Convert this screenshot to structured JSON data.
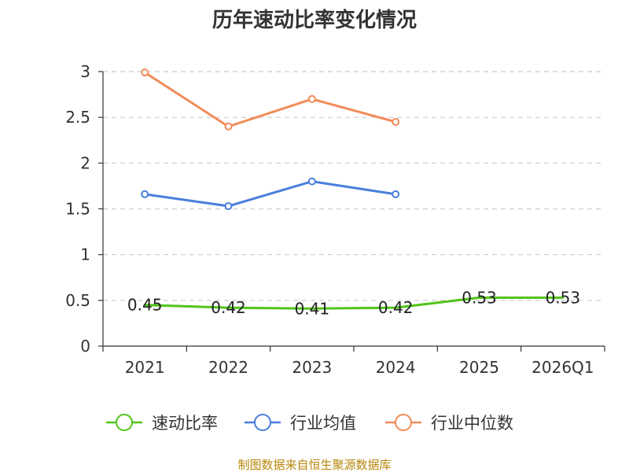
{
  "chart_data": {
    "type": "line",
    "title": "历年速动比率变化情况",
    "categories": [
      "2021",
      "2022",
      "2023",
      "2024",
      "2025",
      "2026Q1"
    ],
    "ylim": [
      0,
      3
    ],
    "yticks": [
      0,
      0.5,
      1,
      1.5,
      2,
      2.5,
      3
    ],
    "ytick_labels": [
      "0",
      "0.5",
      "1",
      "1.5",
      "2",
      "2.5",
      "3"
    ],
    "grid": true,
    "legend_position": "bottom",
    "series": [
      {
        "name": "速动比率",
        "color": "#52c41a",
        "values": [
          0.45,
          0.42,
          0.41,
          0.42,
          0.53,
          0.53
        ],
        "labels": [
          "0.45",
          "0.42",
          "0.41",
          "0.42",
          "0.53",
          "0.53"
        ],
        "show_markers": false,
        "show_labels": true
      },
      {
        "name": "行业均值",
        "color": "#4a7fdc",
        "values": [
          1.66,
          1.53,
          1.8,
          1.66,
          null,
          null
        ],
        "show_markers": true,
        "show_labels": false
      },
      {
        "name": "行业中位数",
        "color": "#f28c5a",
        "values": [
          2.99,
          2.4,
          2.7,
          2.45,
          null,
          null
        ],
        "show_markers": true,
        "show_labels": false
      }
    ]
  },
  "footer": {
    "source": "制图数据来自恒生聚源数据库"
  }
}
